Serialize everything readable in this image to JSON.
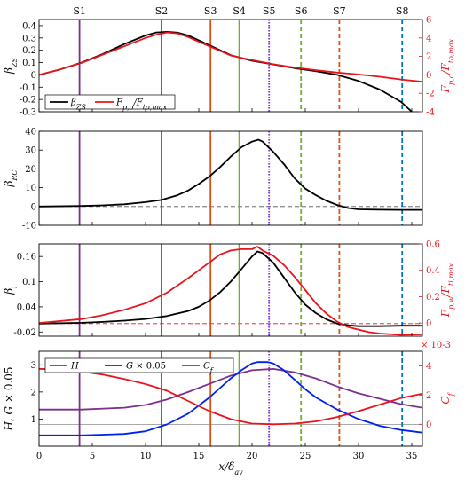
{
  "chart_data": {
    "type": "line",
    "xlabel": "x/δav",
    "xlim": [
      0,
      36
    ],
    "xticks": [
      0,
      5,
      10,
      15,
      20,
      25,
      30,
      35
    ],
    "stations": [
      {
        "name": "S1",
        "x": 3.8,
        "color": "#7e2f8e",
        "style": "solid"
      },
      {
        "name": "S2",
        "x": 11.5,
        "color": "#0072bd",
        "style": "solid"
      },
      {
        "name": "S3",
        "x": 16.1,
        "color": "#d95319",
        "style": "solid"
      },
      {
        "name": "S4",
        "x": 18.8,
        "color": "#77ac30",
        "style": "solid"
      },
      {
        "name": "S5",
        "x": 21.6,
        "color": "#7e2fdc",
        "style": "dotted"
      },
      {
        "name": "S6",
        "x": 24.6,
        "color": "#77ac30",
        "style": "dashed"
      },
      {
        "name": "S7",
        "x": 28.2,
        "color": "#d95319",
        "style": "dashed"
      },
      {
        "name": "S8",
        "x": 34.1,
        "color": "#0072bd",
        "style": "dashed"
      }
    ],
    "panels": [
      {
        "ylabel": "βZS",
        "ylim": [
          -0.3,
          0.45
        ],
        "yticks": [
          -0.3,
          -0.2,
          -0.1,
          0,
          0.1,
          0.2,
          0.3,
          0.4
        ],
        "ytick_labels": [
          "-0.3",
          "-0.2",
          "-0.1",
          "0",
          "0.1",
          "0.2",
          "0.3",
          "0.4"
        ],
        "y2label": "Fp,o/Fto,max",
        "y2lim": [
          -4,
          6
        ],
        "y2ticks": [
          -4,
          -2,
          0,
          2,
          4,
          6
        ],
        "legend": [
          "βZS",
          "Fp,o/Fto,max"
        ],
        "series": [
          {
            "name": "βZS",
            "color": "#000000",
            "axis": "left",
            "x": [
              0,
              2,
              4,
              6,
              8,
              10,
              11,
              12,
              13,
              14,
              16,
              18,
              20,
              22,
              24,
              26,
              28,
              30,
              32,
              34,
              35,
              36
            ],
            "y": [
              0.0,
              0.045,
              0.1,
              0.17,
              0.25,
              0.32,
              0.345,
              0.35,
              0.343,
              0.32,
              0.24,
              0.16,
              0.115,
              0.085,
              0.055,
              0.03,
              0.0,
              -0.05,
              -0.12,
              -0.22,
              -0.3,
              -0.36
            ]
          },
          {
            "name": "Fp,o/Fto,max",
            "color": "#e8141b",
            "axis": "right",
            "x": [
              0,
              2,
              4,
              6,
              8,
              10,
              11,
              12,
              13,
              14,
              16,
              18,
              20,
              22,
              24,
              26,
              28,
              30,
              32,
              34,
              36
            ],
            "y": [
              0.0,
              0.6,
              1.3,
              2.2,
              3.1,
              4.0,
              4.35,
              4.6,
              4.5,
              4.1,
              3.1,
              2.1,
              1.6,
              1.15,
              0.8,
              0.5,
              0.25,
              0.05,
              -0.2,
              -0.5,
              -0.75
            ]
          }
        ]
      },
      {
        "ylabel": "βRC",
        "ylim": [
          -10,
          40
        ],
        "yticks": [
          -10,
          0,
          10,
          20,
          30,
          40
        ],
        "ytick_labels": [
          "-10",
          "0",
          "10",
          "20",
          "30",
          "40"
        ],
        "series": [
          {
            "name": "βRC",
            "color": "#000000",
            "axis": "left",
            "x": [
              0,
              4,
              6,
              8,
              10,
              11.5,
              13,
              14,
              15,
              16,
              17,
              18,
              19,
              20,
              20.6,
              21,
              22,
              23,
              24,
              25,
              26,
              27,
              28,
              29,
              30,
              32,
              34,
              36
            ],
            "y": [
              0.0,
              0.3,
              0.6,
              1.2,
              2.3,
              3.5,
              6.0,
              8.5,
              12.0,
              16.0,
              21.0,
              26.5,
              31.5,
              34.5,
              35.5,
              34.5,
              29.0,
              22.5,
              15.0,
              9.5,
              6.0,
              3.0,
              0.8,
              -0.8,
              -1.5,
              -1.7,
              -1.8,
              -1.8
            ]
          }
        ]
      },
      {
        "ylabel": "βi",
        "ylim": [
          -0.03,
          0.19
        ],
        "yticks": [
          -0.02,
          0.04,
          0.1,
          0.16
        ],
        "ytick_labels": [
          "-0.02",
          "0.04",
          "0.1",
          "0.16"
        ],
        "y2label": "Fp,w/Fti,max",
        "y2lim": [
          -0.1,
          0.6
        ],
        "y2ticks": [
          0,
          0.2,
          0.4,
          0.6
        ],
        "series": [
          {
            "name": "βi",
            "color": "#000000",
            "axis": "left",
            "x": [
              0,
              4,
              6,
              8,
              10,
              12,
              14,
              15,
              16,
              17,
              18,
              19,
              20,
              20.5,
              21,
              22,
              23,
              24,
              25,
              26,
              27,
              28,
              29,
              30,
              32,
              34,
              36
            ],
            "y": [
              0.0,
              0.002,
              0.004,
              0.007,
              0.011,
              0.018,
              0.03,
              0.04,
              0.055,
              0.075,
              0.1,
              0.13,
              0.16,
              0.172,
              0.168,
              0.145,
              0.11,
              0.075,
              0.045,
              0.025,
              0.01,
              0.0,
              -0.004,
              -0.006,
              -0.006,
              -0.005,
              -0.005
            ]
          },
          {
            "name": "Fp,w/Fti,max",
            "color": "#e8141b",
            "axis": "right",
            "x": [
              0,
              4,
              6,
              8,
              10,
              12,
              14,
              16,
              17,
              18,
              19,
              20,
              20.5,
              21,
              22,
              23,
              24,
              25,
              26,
              27,
              28,
              29,
              30,
              31,
              32,
              34,
              36
            ],
            "y": [
              0.0,
              0.03,
              0.06,
              0.1,
              0.15,
              0.23,
              0.34,
              0.46,
              0.52,
              0.55,
              0.56,
              0.56,
              0.58,
              0.55,
              0.51,
              0.44,
              0.35,
              0.25,
              0.15,
              0.07,
              0.01,
              -0.03,
              -0.05,
              -0.07,
              -0.08,
              -0.09,
              -0.085
            ]
          }
        ]
      },
      {
        "ylabel": "H, G × 0.05",
        "ylim": [
          0,
          3.5
        ],
        "yticks": [
          1,
          2,
          3
        ],
        "ytick_labels": [
          "1",
          "2",
          "3"
        ],
        "y2label": "Cf",
        "y2lim": [
          -1.5,
          5
        ],
        "y2ticks": [
          0,
          2,
          4
        ],
        "y2_exponent": "× 10-3",
        "legend": [
          "H",
          "G × 0.05",
          "Cf"
        ],
        "series": [
          {
            "name": "H",
            "color": "#7e2f8e",
            "axis": "left",
            "x": [
              0,
              4,
              8,
              10,
              12,
              14,
              16,
              18,
              20,
              22,
              24,
              26,
              28,
              30,
              32,
              34,
              36
            ],
            "y": [
              1.35,
              1.35,
              1.42,
              1.52,
              1.72,
              2.0,
              2.3,
              2.6,
              2.8,
              2.85,
              2.72,
              2.5,
              2.2,
              1.95,
              1.75,
              1.55,
              1.42
            ]
          },
          {
            "name": "G × 0.05",
            "color": "#0022ee",
            "axis": "left",
            "x": [
              0,
              4,
              8,
              10,
              12,
              14,
              16,
              18,
              19,
              20,
              20.5,
              21,
              21.5,
              22,
              23,
              24,
              25,
              26,
              28,
              30,
              32,
              34,
              36
            ],
            "y": [
              0.4,
              0.4,
              0.45,
              0.55,
              0.8,
              1.2,
              1.8,
              2.5,
              2.8,
              3.05,
              3.1,
              3.1,
              3.1,
              3.05,
              2.8,
              2.45,
              2.1,
              1.8,
              1.35,
              1.0,
              0.75,
              0.6,
              0.5
            ]
          },
          {
            "name": "Cf",
            "color": "#e8141b",
            "axis": "right",
            "x": [
              0,
              2,
              4,
              6,
              8,
              10,
              12,
              14,
              16,
              18,
              20,
              22,
              24,
              26,
              28,
              30,
              32,
              34,
              36
            ],
            "y": [
              3.8,
              3.75,
              3.6,
              3.4,
              3.1,
              2.75,
              2.3,
              1.6,
              0.9,
              0.35,
              0.05,
              0.0,
              0.05,
              0.2,
              0.5,
              0.9,
              1.35,
              1.8,
              2.1
            ]
          }
        ]
      }
    ]
  }
}
